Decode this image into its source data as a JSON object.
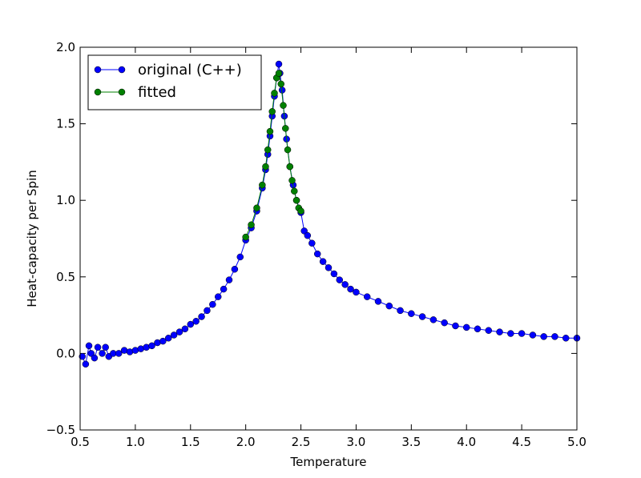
{
  "chart_data": {
    "type": "line",
    "xlabel": "Temperature",
    "ylabel": "Heat-capacity per Spin",
    "xlim": [
      0.5,
      5.0
    ],
    "ylim": [
      -0.5,
      2.0
    ],
    "xticks": [
      0.5,
      {
        "value": 1,
        "label": "1.0"
      },
      1.5,
      {
        "value": 2,
        "label": "2.0"
      },
      2.5,
      {
        "value": 3,
        "label": "3.0"
      },
      3.5,
      {
        "value": 4,
        "label": "4.0"
      },
      4.5,
      {
        "value": 5,
        "label": "5.0"
      }
    ],
    "yticks": [
      {
        "value": -0.5,
        "label": "−0.5"
      },
      {
        "value": 0,
        "label": "0.0"
      },
      0.5,
      {
        "value": 1,
        "label": "1.0"
      },
      1.5,
      {
        "value": 2,
        "label": "2.0"
      }
    ],
    "grid": false,
    "legend": "upper left",
    "series": [
      {
        "name": "original (C++)",
        "color": "#0000ff",
        "x": [
          0.52,
          0.55,
          0.58,
          0.6,
          0.63,
          0.66,
          0.7,
          0.73,
          0.76,
          0.8,
          0.85,
          0.9,
          0.95,
          1.0,
          1.05,
          1.1,
          1.15,
          1.2,
          1.25,
          1.3,
          1.35,
          1.4,
          1.45,
          1.5,
          1.55,
          1.6,
          1.65,
          1.7,
          1.75,
          1.8,
          1.85,
          1.9,
          1.95,
          2.0,
          2.05,
          2.1,
          2.15,
          2.18,
          2.2,
          2.22,
          2.24,
          2.26,
          2.28,
          2.3,
          2.31,
          2.33,
          2.35,
          2.37,
          2.4,
          2.43,
          2.46,
          2.5,
          2.53,
          2.56,
          2.6,
          2.65,
          2.7,
          2.75,
          2.8,
          2.85,
          2.9,
          2.95,
          3.0,
          3.1,
          3.2,
          3.3,
          3.4,
          3.5,
          3.6,
          3.7,
          3.8,
          3.9,
          4.0,
          4.1,
          4.2,
          4.3,
          4.4,
          4.5,
          4.6,
          4.7,
          4.8,
          4.9,
          5.0
        ],
        "values": [
          -0.02,
          -0.07,
          0.05,
          0.0,
          -0.03,
          0.04,
          0.0,
          0.04,
          -0.02,
          0.0,
          0.0,
          0.02,
          0.01,
          0.02,
          0.03,
          0.04,
          0.05,
          0.07,
          0.08,
          0.1,
          0.12,
          0.14,
          0.16,
          0.19,
          0.21,
          0.24,
          0.28,
          0.32,
          0.37,
          0.42,
          0.48,
          0.55,
          0.63,
          0.74,
          0.82,
          0.93,
          1.08,
          1.2,
          1.3,
          1.42,
          1.55,
          1.68,
          1.8,
          1.89,
          1.83,
          1.72,
          1.55,
          1.4,
          1.22,
          1.1,
          1.0,
          0.92,
          0.8,
          0.77,
          0.72,
          0.65,
          0.6,
          0.56,
          0.52,
          0.48,
          0.45,
          0.42,
          0.4,
          0.37,
          0.34,
          0.31,
          0.28,
          0.26,
          0.24,
          0.22,
          0.2,
          0.18,
          0.17,
          0.16,
          0.15,
          0.14,
          0.13,
          0.13,
          0.12,
          0.11,
          0.11,
          0.1,
          0.1
        ]
      },
      {
        "name": "fitted",
        "color": "#008000",
        "x": [
          2.0,
          2.05,
          2.1,
          2.15,
          2.18,
          2.2,
          2.22,
          2.24,
          2.26,
          2.28,
          2.3,
          2.32,
          2.34,
          2.36,
          2.38,
          2.4,
          2.42,
          2.44,
          2.46,
          2.48,
          2.5
        ],
        "values": [
          0.76,
          0.84,
          0.95,
          1.1,
          1.22,
          1.33,
          1.45,
          1.58,
          1.7,
          1.8,
          1.83,
          1.76,
          1.62,
          1.47,
          1.33,
          1.22,
          1.13,
          1.06,
          1.0,
          0.95,
          0.93
        ]
      }
    ]
  }
}
